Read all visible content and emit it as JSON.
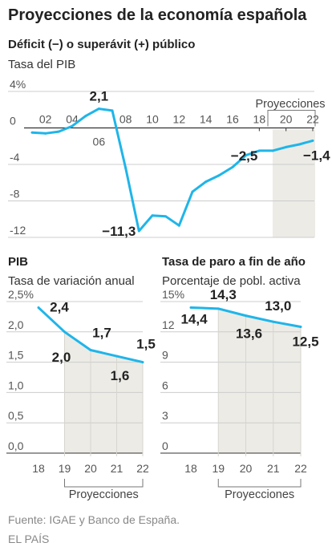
{
  "title": "Proyecciones de la economía española",
  "source": "Fuente: IGAE y Banco de España.",
  "brand": "EL PAÍS",
  "colors": {
    "line": "#1fb5e9",
    "shade": "#ecebe6",
    "grid": "#cccccc",
    "text": "#222222"
  },
  "chart_data": [
    {
      "type": "line",
      "title": "Déficit (−) o superávit (+) público",
      "ylabel": "Tasa del PIB",
      "x": [
        2001,
        2002,
        2003,
        2004,
        2005,
        2006,
        2007,
        2008,
        2009,
        2010,
        2011,
        2012,
        2013,
        2014,
        2015,
        2016,
        2017,
        2018,
        2019,
        2020,
        2021,
        2022
      ],
      "values": [
        -0.5,
        -0.6,
        -0.4,
        0.2,
        1.3,
        2.1,
        1.9,
        -4.4,
        -11.3,
        -9.6,
        -9.7,
        -10.7,
        -7.0,
        -5.9,
        -5.2,
        -4.3,
        -3.0,
        -2.5,
        -2.5,
        -2.1,
        -1.8,
        -1.4
      ],
      "xlim": [
        2001,
        2022
      ],
      "ylim": [
        -12,
        4
      ],
      "x_ticks": [
        {
          "x": 2002,
          "label": "02"
        },
        {
          "x": 2004,
          "label": "04"
        },
        {
          "x": 2006,
          "label": "06"
        },
        {
          "x": 2008,
          "label": "08"
        },
        {
          "x": 2010,
          "label": "10"
        },
        {
          "x": 2012,
          "label": "12"
        },
        {
          "x": 2014,
          "label": "14"
        },
        {
          "x": 2016,
          "label": "16"
        },
        {
          "x": 2018,
          "label": "18"
        },
        {
          "x": 2020,
          "label": "20"
        },
        {
          "x": 2022,
          "label": "22"
        }
      ],
      "y_ticks": [
        {
          "y": 4,
          "label": "4%"
        },
        {
          "y": 0,
          "label": "0"
        },
        {
          "y": -4,
          "label": "-4"
        },
        {
          "y": -8,
          "label": "-8"
        },
        {
          "y": -12,
          "label": "-12"
        }
      ],
      "data_labels": [
        {
          "x": 2006,
          "y": 2.1,
          "text": "2,1"
        },
        {
          "x": 2009,
          "y": -11.3,
          "text": "−11,3"
        },
        {
          "x": 2018,
          "y": -2.5,
          "text": "−2,5"
        },
        {
          "x": 2022,
          "y": -1.4,
          "text": "−1,4"
        }
      ],
      "projection": {
        "from": 2019,
        "to": 2022,
        "label": "Proyecciones"
      },
      "grid": true
    },
    {
      "type": "line",
      "title": "PIB",
      "ylabel": "Tasa de variación anual",
      "x": [
        2018,
        2019,
        2020,
        2021,
        2022
      ],
      "values": [
        2.4,
        2.0,
        1.7,
        1.6,
        1.5
      ],
      "ylim": [
        0,
        2.5
      ],
      "x_ticks": [
        {
          "x": 2018,
          "label": "18"
        },
        {
          "x": 2019,
          "label": "19"
        },
        {
          "x": 2020,
          "label": "20"
        },
        {
          "x": 2021,
          "label": "21"
        },
        {
          "x": 2022,
          "label": "22"
        }
      ],
      "y_ticks": [
        {
          "y": 2.5,
          "label": "2,5%"
        },
        {
          "y": 2.0,
          "label": "2,0"
        },
        {
          "y": 1.5,
          "label": "1,5"
        },
        {
          "y": 1.0,
          "label": "1,0"
        },
        {
          "y": 0.5,
          "label": "0,5"
        },
        {
          "y": 0,
          "label": "0,0"
        }
      ],
      "data_labels": [
        {
          "x": 2018,
          "y": 2.4,
          "text": "2,4"
        },
        {
          "x": 2019,
          "y": 2.0,
          "text": "2,0"
        },
        {
          "x": 2020,
          "y": 1.7,
          "text": "1,7"
        },
        {
          "x": 2021,
          "y": 1.6,
          "text": "1,6"
        },
        {
          "x": 2022,
          "y": 1.5,
          "text": "1,5"
        }
      ],
      "projection": {
        "from": 2019,
        "to": 2022,
        "label": "Proyecciones"
      },
      "grid": true
    },
    {
      "type": "line",
      "title": "Tasa de paro a fin de año",
      "ylabel": "Porcentaje de pobl. activa",
      "x": [
        2018,
        2019,
        2020,
        2021,
        2022
      ],
      "values": [
        14.4,
        14.3,
        13.6,
        13.0,
        12.5
      ],
      "ylim": [
        0,
        15
      ],
      "x_ticks": [
        {
          "x": 2018,
          "label": "18"
        },
        {
          "x": 2019,
          "label": "19"
        },
        {
          "x": 2020,
          "label": "20"
        },
        {
          "x": 2021,
          "label": "21"
        },
        {
          "x": 2022,
          "label": "22"
        }
      ],
      "y_ticks": [
        {
          "y": 15,
          "label": "15%"
        },
        {
          "y": 12,
          "label": "12"
        },
        {
          "y": 9,
          "label": "9"
        },
        {
          "y": 6,
          "label": "6"
        },
        {
          "y": 3,
          "label": "3"
        },
        {
          "y": 0,
          "label": "0"
        }
      ],
      "data_labels": [
        {
          "x": 2018,
          "y": 14.4,
          "text": "14,4"
        },
        {
          "x": 2019,
          "y": 14.3,
          "text": "14,3"
        },
        {
          "x": 2020,
          "y": 13.6,
          "text": "13,6"
        },
        {
          "x": 2021,
          "y": 13.0,
          "text": "13,0"
        },
        {
          "x": 2022,
          "y": 12.5,
          "text": "12,5"
        }
      ],
      "projection": {
        "from": 2019,
        "to": 2022,
        "label": "Proyecciones"
      },
      "grid": true
    }
  ]
}
